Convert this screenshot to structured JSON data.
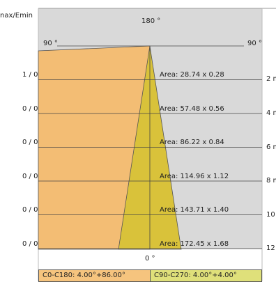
{
  "diagram": {
    "header_label": "nax/Emin",
    "top_angle": "180 °",
    "bottom_angle": "0 °",
    "left_angle": "90 °",
    "right_angle": "90 °",
    "rows": [
      {
        "ratio": "1 / 0",
        "area": "Area: 28.74 x 0.28",
        "distance": "2 m"
      },
      {
        "ratio": "0 / 0",
        "area": "Area: 57.48 x 0.56",
        "distance": "4 m"
      },
      {
        "ratio": "0 / 0",
        "area": "Area: 86.22 x 0.84",
        "distance": "6 m"
      },
      {
        "ratio": "0 / 0",
        "area": "Area: 114.96 x 1.12",
        "distance": "8 m"
      },
      {
        "ratio": "0 / 0",
        "area": "Area: 143.71 x 1.40",
        "distance": "10"
      },
      {
        "ratio": "0 / 0",
        "area": "Area: 172.45 x 1.68",
        "distance": "12"
      }
    ],
    "beam_angles_deg": {
      "c0_c180": {
        "narrow": 4.0,
        "wide": 86.0
      },
      "c90_c270": {
        "narrow": 4.0,
        "wide": 4.0
      }
    },
    "colors": {
      "panel": "#d9d9d9",
      "c0_fill": "#f3bd74",
      "c90_fill": "#d9c23a",
      "c0_legend": "#f6c47e",
      "c90_legend": "#dfe07a"
    }
  },
  "legend": {
    "c0": "C0-C180: 4.00°+86.00°",
    "c90": "C90-C270: 4.00°+4.00°"
  }
}
